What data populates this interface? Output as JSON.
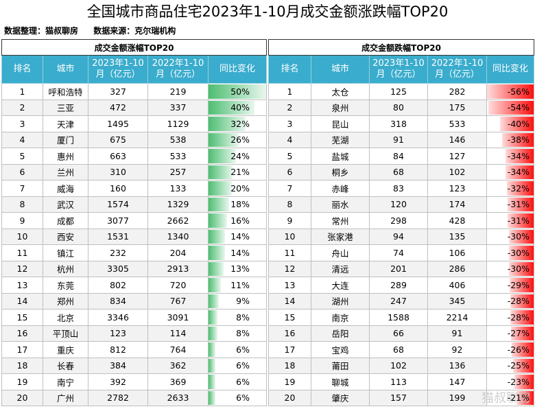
{
  "title": "全国城市商品住宅2023年1-10月成交金额涨跌幅TOP20",
  "meta": {
    "organizer": "数据整理：猫叔聊房",
    "source": "数据来源：克尔瑞机构"
  },
  "headers": {
    "rank": "排名",
    "city": "城市",
    "y2023": "2023年1-10月（亿元）",
    "y2022": "2022年1-10月（亿元）",
    "change": "同比变化"
  },
  "rise": {
    "title": "成交金额涨幅TOP20",
    "rows": [
      {
        "rank": "1",
        "city": "呼和浩特",
        "y2023": "327",
        "y2022": "219",
        "change": "50%",
        "level": 50
      },
      {
        "rank": "2",
        "city": "三亚",
        "y2023": "472",
        "y2022": "337",
        "change": "40%",
        "level": 40
      },
      {
        "rank": "3",
        "city": "天津",
        "y2023": "1495",
        "y2022": "1129",
        "change": "32%",
        "level": 32
      },
      {
        "rank": "4",
        "city": "厦门",
        "y2023": "675",
        "y2022": "538",
        "change": "26%",
        "level": 26
      },
      {
        "rank": "5",
        "city": "惠州",
        "y2023": "663",
        "y2022": "533",
        "change": "24%",
        "level": 24
      },
      {
        "rank": "6",
        "city": "兰州",
        "y2023": "310",
        "y2022": "257",
        "change": "21%",
        "level": 21
      },
      {
        "rank": "7",
        "city": "威海",
        "y2023": "160",
        "y2022": "133",
        "change": "20%",
        "level": 20
      },
      {
        "rank": "8",
        "city": "武汉",
        "y2023": "1574",
        "y2022": "1329",
        "change": "18%",
        "level": 18
      },
      {
        "rank": "9",
        "city": "成都",
        "y2023": "3077",
        "y2022": "2662",
        "change": "16%",
        "level": 16
      },
      {
        "rank": "10",
        "city": "西安",
        "y2023": "1531",
        "y2022": "1340",
        "change": "14%",
        "level": 14
      },
      {
        "rank": "11",
        "city": "镇江",
        "y2023": "232",
        "y2022": "204",
        "change": "14%",
        "level": 14
      },
      {
        "rank": "12",
        "city": "杭州",
        "y2023": "3305",
        "y2022": "2913",
        "change": "13%",
        "level": 13
      },
      {
        "rank": "13",
        "city": "东莞",
        "y2023": "802",
        "y2022": "720",
        "change": "11%",
        "level": 11
      },
      {
        "rank": "14",
        "city": "郑州",
        "y2023": "834",
        "y2022": "767",
        "change": "9%",
        "level": 9
      },
      {
        "rank": "15",
        "city": "北京",
        "y2023": "3346",
        "y2022": "3091",
        "change": "8%",
        "level": 8
      },
      {
        "rank": "16",
        "city": "平顶山",
        "y2023": "123",
        "y2022": "114",
        "change": "8%",
        "level": 8
      },
      {
        "rank": "17",
        "city": "重庆",
        "y2023": "812",
        "y2022": "764",
        "change": "6%",
        "level": 6
      },
      {
        "rank": "18",
        "city": "长春",
        "y2023": "384",
        "y2022": "362",
        "change": "6%",
        "level": 6
      },
      {
        "rank": "19",
        "city": "南宁",
        "y2023": "392",
        "y2022": "369",
        "change": "6%",
        "level": 6
      },
      {
        "rank": "20",
        "city": "广州",
        "y2023": "2782",
        "y2022": "2633",
        "change": "6%",
        "level": 6
      }
    ]
  },
  "fall": {
    "title": "成交金额跌幅TOP20",
    "rows": [
      {
        "rank": "1",
        "city": "太仓",
        "y2023": "125",
        "y2022": "282",
        "change": "-56%",
        "level": 56
      },
      {
        "rank": "2",
        "city": "泉州",
        "y2023": "80",
        "y2022": "175",
        "change": "-54%",
        "level": 54
      },
      {
        "rank": "3",
        "city": "昆山",
        "y2023": "318",
        "y2022": "533",
        "change": "-40%",
        "level": 40
      },
      {
        "rank": "4",
        "city": "芜湖",
        "y2023": "91",
        "y2022": "146",
        "change": "-38%",
        "level": 38
      },
      {
        "rank": "5",
        "city": "盐城",
        "y2023": "84",
        "y2022": "127",
        "change": "-34%",
        "level": 34
      },
      {
        "rank": "6",
        "city": "桐乡",
        "y2023": "68",
        "y2022": "102",
        "change": "-34%",
        "level": 34
      },
      {
        "rank": "7",
        "city": "赤峰",
        "y2023": "83",
        "y2022": "123",
        "change": "-32%",
        "level": 32
      },
      {
        "rank": "8",
        "city": "丽水",
        "y2023": "120",
        "y2022": "174",
        "change": "-31%",
        "level": 31
      },
      {
        "rank": "9",
        "city": "常州",
        "y2023": "298",
        "y2022": "428",
        "change": "-31%",
        "level": 31
      },
      {
        "rank": "10",
        "city": "张家港",
        "y2023": "94",
        "y2022": "135",
        "change": "-30%",
        "level": 30
      },
      {
        "rank": "11",
        "city": "舟山",
        "y2023": "74",
        "y2022": "106",
        "change": "-30%",
        "level": 30
      },
      {
        "rank": "12",
        "city": "清远",
        "y2023": "201",
        "y2022": "286",
        "change": "-30%",
        "level": 30
      },
      {
        "rank": "13",
        "city": "大连",
        "y2023": "289",
        "y2022": "406",
        "change": "-29%",
        "level": 29
      },
      {
        "rank": "14",
        "city": "湖州",
        "y2023": "247",
        "y2022": "345",
        "change": "-28%",
        "level": 28
      },
      {
        "rank": "15",
        "city": "南京",
        "y2023": "1588",
        "y2022": "2214",
        "change": "-28%",
        "level": 28
      },
      {
        "rank": "16",
        "city": "岳阳",
        "y2023": "66",
        "y2022": "91",
        "change": "-27%",
        "level": 27
      },
      {
        "rank": "17",
        "city": "宝鸡",
        "y2023": "68",
        "y2022": "92",
        "change": "-26%",
        "level": 26
      },
      {
        "rank": "18",
        "city": "莆田",
        "y2023": "102",
        "y2022": "136",
        "change": "-25%",
        "level": 25
      },
      {
        "rank": "19",
        "city": "聊城",
        "y2023": "113",
        "y2022": "147",
        "change": "-23%",
        "level": 23
      },
      {
        "rank": "20",
        "city": "肇庆",
        "y2023": "157",
        "y2022": "199",
        "change": "-21%",
        "level": 21
      }
    ]
  },
  "watermark": "猫叔聊房"
}
